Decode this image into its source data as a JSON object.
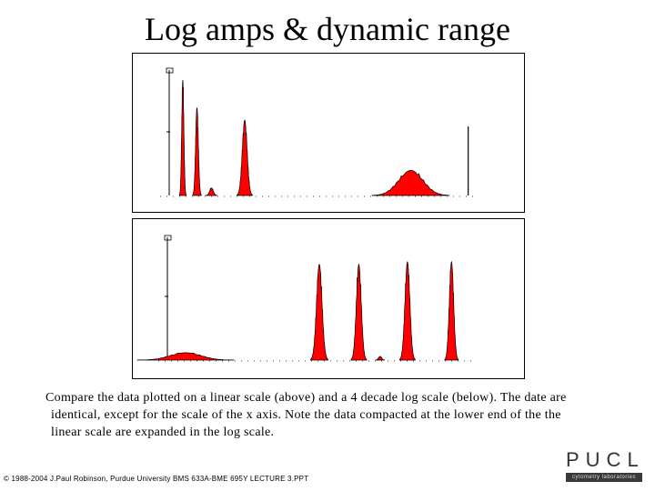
{
  "slide": {
    "title": "Log amps & dynamic range",
    "caption_lines": [
      "Compare the data plotted on a linear scale (above) and a 4 decade log scale (below). The date are",
      "identical, except for the scale of the x axis. Note the data compacted at the lower end of the the",
      "linear scale are expanded in the log scale."
    ],
    "footer": "© 1988-2004 J.Paul Robinson, Purdue University  BMS 633A-BME 695Y  LECTURE 3.PPT",
    "logo": {
      "name": "PUCL",
      "tagline": "cytometry laboratories"
    }
  },
  "colors": {
    "fill": "#ff0000",
    "line": "#000000",
    "frame": "#000000"
  },
  "histograms": {
    "linear": {
      "scale": "linear",
      "peaks": [
        {
          "center": 0.045,
          "height": 0.92,
          "width": 0.0035
        },
        {
          "center": 0.092,
          "height": 0.7,
          "width": 0.0045
        },
        {
          "center": 0.14,
          "height": 0.06,
          "width": 0.006
        },
        {
          "center": 0.25,
          "height": 0.6,
          "width": 0.008
        },
        {
          "center": 0.8,
          "height": 0.2,
          "width": 0.04
        }
      ],
      "edge_spike": {
        "x": 0.99,
        "height": 0.55
      }
    },
    "log": {
      "scale": "log 4 decade",
      "peaks": [
        {
          "center": 0.06,
          "height": 0.06,
          "width": 0.05
        },
        {
          "center": 0.5,
          "height": 0.78,
          "width": 0.009
        },
        {
          "center": 0.63,
          "height": 0.78,
          "width": 0.008
        },
        {
          "center": 0.7,
          "height": 0.03,
          "width": 0.005
        },
        {
          "center": 0.79,
          "height": 0.8,
          "width": 0.008
        },
        {
          "center": 0.935,
          "height": 0.8,
          "width": 0.007
        }
      ]
    }
  }
}
